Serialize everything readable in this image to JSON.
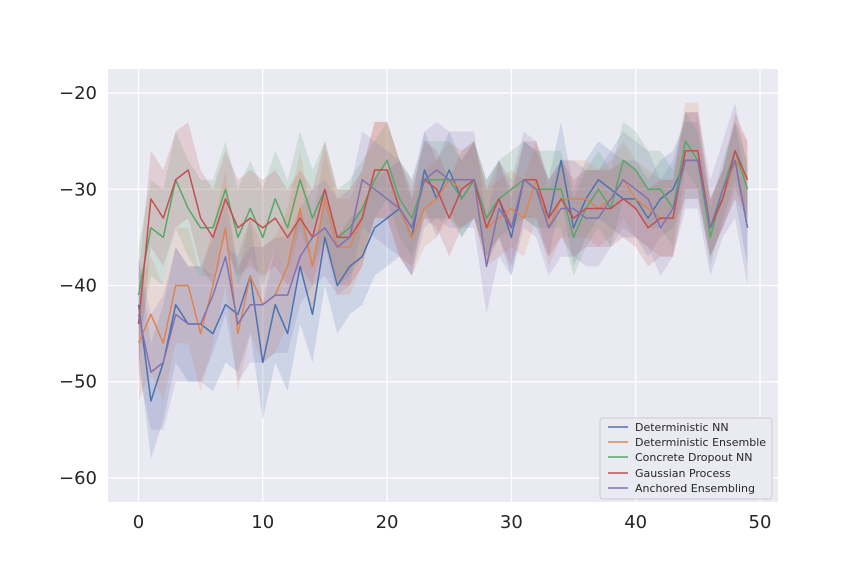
{
  "chart_data": {
    "type": "line",
    "title": "",
    "xlabel": "",
    "ylabel": "",
    "xlim": [
      -2.45,
      51.45
    ],
    "ylim": [
      -62.5,
      -17.5
    ],
    "xticks": [
      0,
      10,
      20,
      30,
      40,
      50
    ],
    "yticks": [
      -20,
      -30,
      -40,
      -50,
      -60
    ],
    "xtick_labels": [
      "0",
      "10",
      "20",
      "30",
      "40",
      "50"
    ],
    "ytick_labels": [
      "−20",
      "−30",
      "−40",
      "−50",
      "−60"
    ],
    "grid": true,
    "legend_position": "lower-right",
    "background_color": "#eaeaf2",
    "x": [
      0,
      1,
      2,
      3,
      4,
      5,
      6,
      7,
      8,
      9,
      10,
      11,
      12,
      13,
      14,
      15,
      16,
      17,
      18,
      19,
      20,
      21,
      22,
      23,
      24,
      25,
      26,
      27,
      28,
      29,
      30,
      31,
      32,
      33,
      34,
      35,
      36,
      37,
      38,
      39,
      40,
      41,
      42,
      43,
      44,
      45,
      46,
      47,
      48,
      49
    ],
    "series": [
      {
        "name": "Deterministic NN",
        "color": "#4c72b0",
        "values": [
          -42,
          -52,
          -48,
          -42,
          -44,
          -44,
          -45,
          -42,
          -43,
          -39,
          -48,
          -42,
          -45,
          -38,
          -43,
          -35,
          -40,
          -38,
          -37,
          -34,
          -33,
          -32,
          -35,
          -28,
          -31,
          -28,
          -31,
          -29,
          -33,
          -31,
          -35,
          -29,
          -30,
          -33,
          -27,
          -34,
          -31,
          -29,
          -30,
          -31,
          -31,
          -33,
          -31,
          -30,
          -27,
          -27,
          -34,
          -31,
          -27,
          -34
        ],
        "band": [
          5,
          6,
          6,
          6,
          6,
          6,
          6,
          6,
          6,
          6,
          6,
          6,
          6,
          6,
          5,
          5,
          5,
          5,
          5,
          5,
          5,
          5,
          4,
          4,
          4,
          4,
          4,
          4,
          4,
          4,
          4,
          4,
          4,
          4,
          4,
          4,
          4,
          4,
          4,
          4,
          4,
          4,
          4,
          4,
          4,
          4,
          3,
          3,
          4,
          4
        ]
      },
      {
        "name": "Deterministic Ensemble",
        "color": "#dd8452",
        "values": [
          -46,
          -43,
          -46,
          -40,
          -40,
          -45,
          -40,
          -34,
          -45,
          -39,
          -42,
          -41,
          -38,
          -32,
          -38,
          -31,
          -36,
          -36,
          -33,
          -28,
          -28,
          -32,
          -35,
          -32,
          -31,
          -29,
          -30,
          -29,
          -34,
          -33,
          -32,
          -33,
          -29,
          -34,
          -31,
          -31,
          -31,
          -32,
          -31,
          -29,
          -31,
          -32,
          -33,
          -33,
          -26,
          -26,
          -34,
          -31,
          -27,
          -29
        ],
        "band": [
          6,
          6,
          6,
          6,
          6,
          6,
          6,
          6,
          6,
          6,
          6,
          6,
          6,
          6,
          5,
          5,
          5,
          5,
          5,
          5,
          5,
          5,
          4,
          4,
          4,
          4,
          4,
          4,
          4,
          4,
          4,
          4,
          4,
          4,
          4,
          4,
          4,
          4,
          4,
          4,
          4,
          4,
          4,
          4,
          5,
          5,
          3,
          3,
          4,
          4
        ]
      },
      {
        "name": "Concrete Dropout NN",
        "color": "#55a868",
        "values": [
          -41,
          -34,
          -35,
          -29,
          -32,
          -34,
          -34,
          -30,
          -35,
          -32,
          -35,
          -31,
          -34,
          -29,
          -33,
          -30,
          -35,
          -34,
          -32,
          -29,
          -27,
          -31,
          -33,
          -29,
          -29,
          -29,
          -31,
          -29,
          -33,
          -31,
          -30,
          -29,
          -30,
          -30,
          -30,
          -35,
          -32,
          -30,
          -32,
          -27,
          -28,
          -30,
          -30,
          -32,
          -25,
          -27,
          -35,
          -30,
          -26,
          -30
        ],
        "band": [
          5,
          5,
          5,
          5,
          5,
          5,
          5,
          5,
          5,
          5,
          5,
          5,
          5,
          5,
          5,
          5,
          5,
          5,
          5,
          4,
          4,
          4,
          4,
          4,
          4,
          4,
          4,
          4,
          4,
          4,
          4,
          4,
          4,
          4,
          4,
          4,
          4,
          4,
          4,
          4,
          4,
          4,
          4,
          4,
          3,
          3,
          3,
          3,
          3,
          3
        ]
      },
      {
        "name": "Gaussian Process",
        "color": "#c44e52",
        "values": [
          -44,
          -31,
          -33,
          -29,
          -28,
          -33,
          -35,
          -31,
          -34,
          -33,
          -34,
          -33,
          -35,
          -33,
          -35,
          -30,
          -35,
          -35,
          -33,
          -28,
          -28,
          -32,
          -34,
          -29,
          -30,
          -33,
          -30,
          -29,
          -34,
          -31,
          -34,
          -29,
          -29,
          -33,
          -31,
          -33,
          -32,
          -32,
          -32,
          -31,
          -32,
          -34,
          -33,
          -33,
          -26,
          -26,
          -34,
          -31,
          -26,
          -29
        ],
        "band": [
          5,
          5,
          5,
          5,
          5,
          5,
          5,
          5,
          5,
          5,
          5,
          5,
          5,
          5,
          5,
          5,
          5,
          5,
          5,
          5,
          5,
          5,
          4,
          4,
          4,
          4,
          4,
          4,
          4,
          4,
          4,
          4,
          4,
          4,
          4,
          4,
          4,
          4,
          4,
          4,
          4,
          4,
          4,
          4,
          4,
          4,
          3,
          3,
          4,
          4
        ]
      },
      {
        "name": "Anchored Ensembling",
        "color": "#8172b2",
        "values": [
          -43,
          -49,
          -48,
          -43,
          -44,
          -44,
          -41,
          -37,
          -44,
          -42,
          -42,
          -41,
          -41,
          -37,
          -35,
          -34,
          -36,
          -35,
          -29,
          -30,
          -31,
          -32,
          -34,
          -29,
          -28,
          -29,
          -29,
          -29,
          -38,
          -32,
          -34,
          -29,
          -30,
          -34,
          -32,
          -32,
          -33,
          -33,
          -31,
          -29,
          -30,
          -31,
          -34,
          -32,
          -27,
          -27,
          -34,
          -30,
          -27,
          -34
        ],
        "band": [
          6,
          6,
          7,
          7,
          6,
          6,
          6,
          6,
          6,
          6,
          6,
          6,
          6,
          5,
          5,
          5,
          5,
          5,
          5,
          5,
          5,
          5,
          5,
          5,
          5,
          5,
          5,
          5,
          5,
          5,
          5,
          5,
          5,
          5,
          5,
          5,
          5,
          5,
          5,
          5,
          5,
          5,
          5,
          5,
          5,
          5,
          5,
          5,
          6,
          6
        ]
      }
    ]
  }
}
